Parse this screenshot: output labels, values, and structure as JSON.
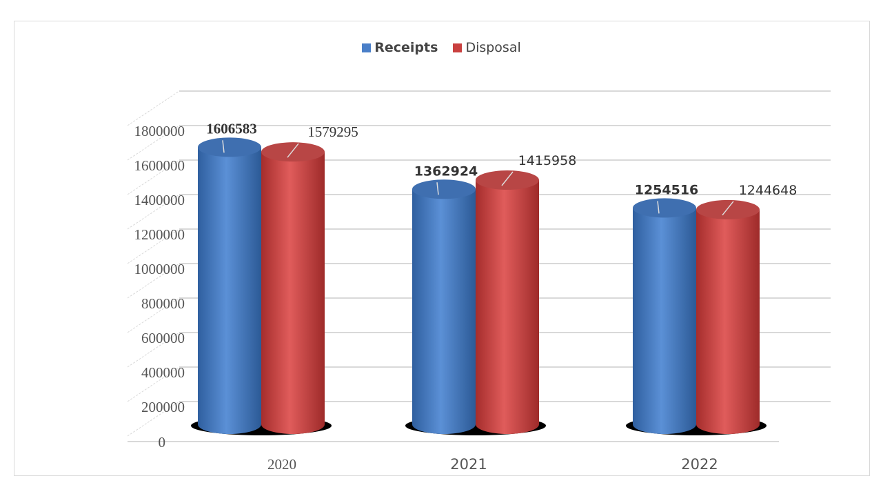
{
  "chart_data": {
    "type": "bar",
    "style": "3d-cylinder",
    "title": "",
    "xlabel": "",
    "ylabel": "",
    "categories": [
      "2020",
      "2021",
      "2022"
    ],
    "series": [
      {
        "name": "Receipts",
        "color": "#4a7fc8",
        "values": [
          1606583,
          1362924,
          1254516
        ],
        "label_bold": true
      },
      {
        "name": "Disposal",
        "color": "#c9403f",
        "values": [
          1579295,
          1415958,
          1244648
        ],
        "label_bold": false
      }
    ],
    "yticks": [
      "0",
      "200000",
      "400000",
      "600000",
      "800000",
      "1000000",
      "1200000",
      "1400000",
      "1600000",
      "1800000"
    ],
    "ylim": [
      0,
      2000000
    ],
    "grid": true,
    "legend_position": "top-center"
  }
}
